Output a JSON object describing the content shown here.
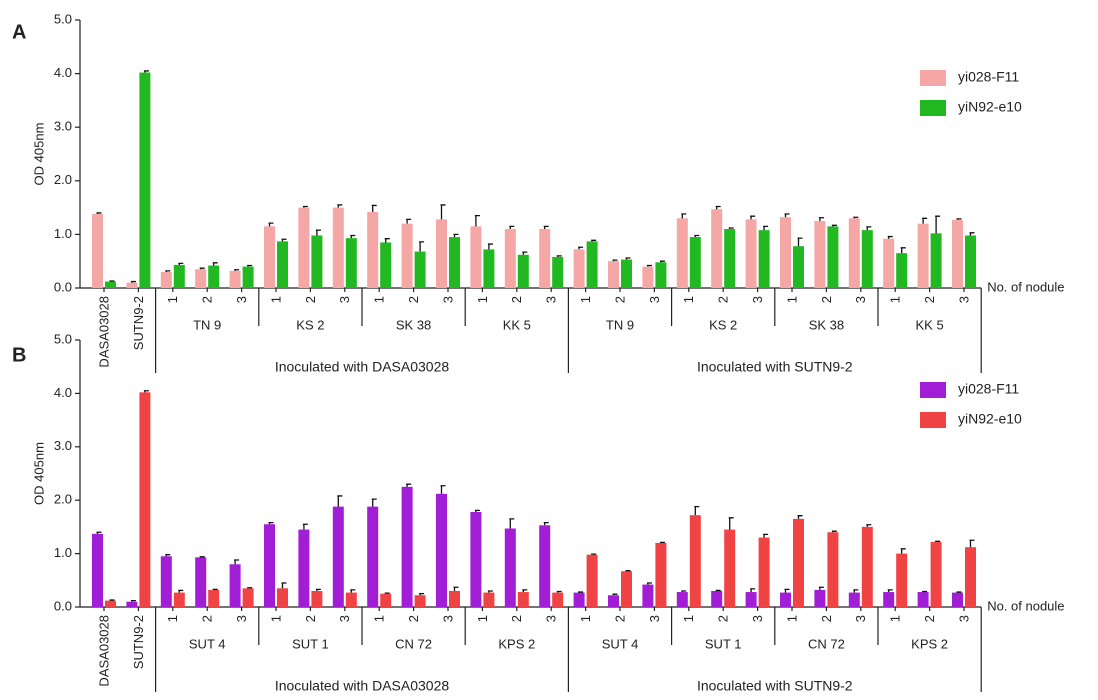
{
  "chart_data": [
    {
      "type": "bar",
      "panel": "A",
      "y_label": "OD 405nm",
      "x_label": "No. of nodule",
      "categories": [
        "DASA03028",
        "SUTN9-2",
        "1",
        "2",
        "3",
        "1",
        "2",
        "3",
        "1",
        "2",
        "3",
        "1",
        "2",
        "3",
        "1",
        "2",
        "3",
        "1",
        "2",
        "3",
        "1",
        "2",
        "3",
        "1",
        "2",
        "3"
      ],
      "groups": [
        "TN 9",
        "KS 2",
        "SK 38",
        "KK 5",
        "TN 9",
        "KS 2",
        "SK 38",
        "KK 5"
      ],
      "super_groups": [
        "Inoculated with DASA03028",
        "Inoculated with SUTN9-2"
      ],
      "series": [
        {
          "name": "yi028-F11",
          "color": "#f4a7a5",
          "values": [
            1.38,
            0.1,
            0.3,
            0.35,
            0.32,
            1.15,
            1.5,
            1.5,
            1.42,
            1.2,
            1.28,
            1.15,
            1.1,
            1.1,
            0.72,
            0.5,
            0.4,
            1.3,
            1.47,
            1.28,
            1.32,
            1.25,
            1.3,
            0.92,
            1.2,
            1.27
          ],
          "errors": [
            0.02,
            0.02,
            0.02,
            0.02,
            0.02,
            0.06,
            0.02,
            0.05,
            0.12,
            0.08,
            0.27,
            0.2,
            0.05,
            0.05,
            0.04,
            0.02,
            0.02,
            0.08,
            0.05,
            0.06,
            0.06,
            0.06,
            0.02,
            0.04,
            0.1,
            0.02
          ]
        },
        {
          "name": "yiN92-e10",
          "color": "#22b822",
          "values": [
            0.12,
            4.02,
            0.43,
            0.42,
            0.4,
            0.87,
            0.98,
            0.93,
            0.85,
            0.68,
            0.95,
            0.72,
            0.62,
            0.58,
            0.87,
            0.53,
            0.48,
            0.95,
            1.1,
            1.08,
            0.78,
            1.15,
            1.08,
            0.65,
            1.02,
            0.98
          ],
          "errors": [
            0.01,
            0.03,
            0.03,
            0.05,
            0.02,
            0.04,
            0.1,
            0.05,
            0.07,
            0.18,
            0.05,
            0.1,
            0.05,
            0.02,
            0.02,
            0.03,
            0.02,
            0.03,
            0.02,
            0.07,
            0.15,
            0.02,
            0.06,
            0.1,
            0.32,
            0.05
          ]
        }
      ],
      "ylim": [
        0,
        5
      ],
      "yticks": [
        {
          "value": 0,
          "label": "0.0"
        },
        {
          "value": 1,
          "label": "1.0"
        },
        {
          "value": 2,
          "label": "2.0"
        },
        {
          "value": 3,
          "label": "3.0"
        },
        {
          "value": 4,
          "label": "4.0"
        },
        {
          "value": 5,
          "label": "5.0"
        }
      ],
      "legend": "right"
    },
    {
      "type": "bar",
      "panel": "B",
      "y_label": "OD 405nm",
      "x_label": "No. of nodule",
      "categories": [
        "DASA03028",
        "SUTN9-2",
        "1",
        "2",
        "3",
        "1",
        "2",
        "3",
        "1",
        "2",
        "3",
        "1",
        "2",
        "3",
        "1",
        "2",
        "3",
        "1",
        "2",
        "3",
        "1",
        "2",
        "3",
        "1",
        "2",
        "3"
      ],
      "groups": [
        "SUT 4",
        "SUT 1",
        "CN 72",
        "KPS 2",
        "SUT 4",
        "SUT 1",
        "CN 72",
        "KPS 2"
      ],
      "super_groups": [
        "Inoculated with DASA03028",
        "Inoculated with SUTN9-2"
      ],
      "series": [
        {
          "name": "yi028-F11",
          "color": "#a21ed6",
          "values": [
            1.37,
            0.1,
            0.95,
            0.93,
            0.8,
            1.55,
            1.45,
            1.88,
            1.88,
            2.25,
            2.12,
            1.78,
            1.47,
            1.53,
            0.27,
            0.22,
            0.42,
            0.28,
            0.3,
            0.28,
            0.27,
            0.32,
            0.27,
            0.28,
            0.28,
            0.27
          ],
          "errors": [
            0.03,
            0.02,
            0.03,
            0.01,
            0.08,
            0.03,
            0.1,
            0.2,
            0.14,
            0.05,
            0.15,
            0.03,
            0.18,
            0.05,
            0.01,
            0.02,
            0.03,
            0.02,
            0.01,
            0.06,
            0.06,
            0.05,
            0.05,
            0.04,
            0.01,
            0.01
          ]
        },
        {
          "name": "yiN92-e10",
          "color": "#f04444",
          "values": [
            0.12,
            4.02,
            0.27,
            0.32,
            0.35,
            0.35,
            0.3,
            0.27,
            0.25,
            0.22,
            0.3,
            0.27,
            0.28,
            0.27,
            0.98,
            0.67,
            1.2,
            1.72,
            1.45,
            1.3,
            1.65,
            1.4,
            1.5,
            1.0,
            1.22,
            1.12
          ],
          "errors": [
            0.01,
            0.03,
            0.04,
            0.01,
            0.01,
            0.1,
            0.03,
            0.05,
            0.01,
            0.03,
            0.07,
            0.03,
            0.04,
            0.02,
            0.01,
            0.01,
            0.01,
            0.16,
            0.22,
            0.06,
            0.06,
            0.02,
            0.04,
            0.09,
            0.01,
            0.13
          ]
        }
      ],
      "ylim": [
        0,
        5
      ],
      "yticks": [
        {
          "value": 0,
          "label": "0.0"
        },
        {
          "value": 1,
          "label": "1.0"
        },
        {
          "value": 2,
          "label": "2.0"
        },
        {
          "value": 3,
          "label": "3.0"
        },
        {
          "value": 4,
          "label": "4.0"
        },
        {
          "value": 5,
          "label": "5.0"
        }
      ],
      "legend": "right"
    }
  ]
}
